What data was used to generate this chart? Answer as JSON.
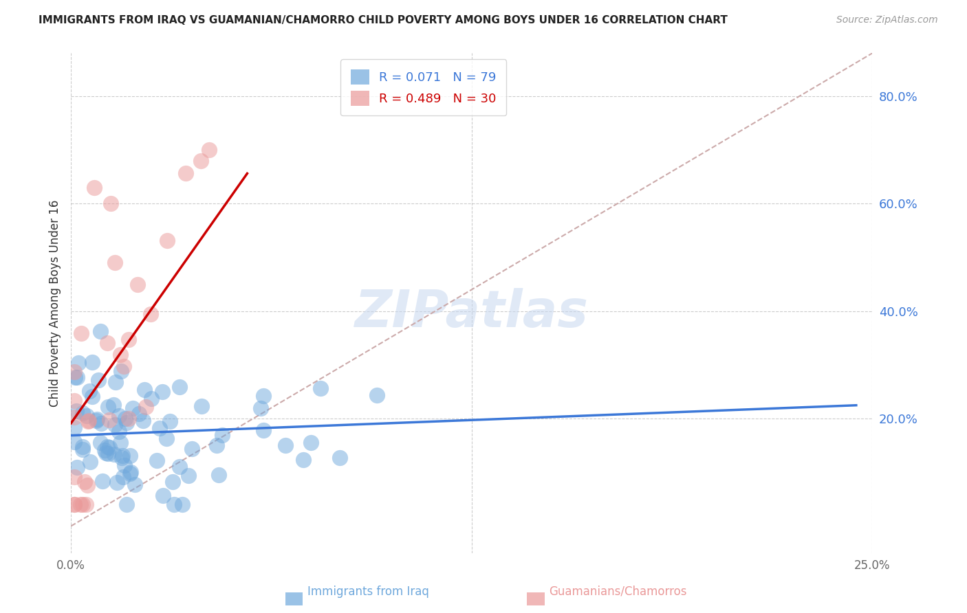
{
  "title": "IMMIGRANTS FROM IRAQ VS GUAMANIAN/CHAMORRO CHILD POVERTY AMONG BOYS UNDER 16 CORRELATION CHART",
  "source": "Source: ZipAtlas.com",
  "ylabel": "Child Poverty Among Boys Under 16",
  "ylabel_right_ticks": [
    "80.0%",
    "60.0%",
    "40.0%",
    "20.0%"
  ],
  "ylabel_right_vals": [
    0.8,
    0.6,
    0.4,
    0.2
  ],
  "xlim": [
    0.0,
    0.25
  ],
  "ylim": [
    -0.05,
    0.88
  ],
  "r_iraq": 0.071,
  "n_iraq": 79,
  "r_guam": 0.489,
  "n_guam": 30,
  "color_iraq": "#6fa8dc",
  "color_guam": "#ea9999",
  "color_iraq_line": "#3c78d8",
  "color_guam_line": "#cc0000",
  "color_diag": "#ccaaaa",
  "watermark": "ZIPatlas"
}
